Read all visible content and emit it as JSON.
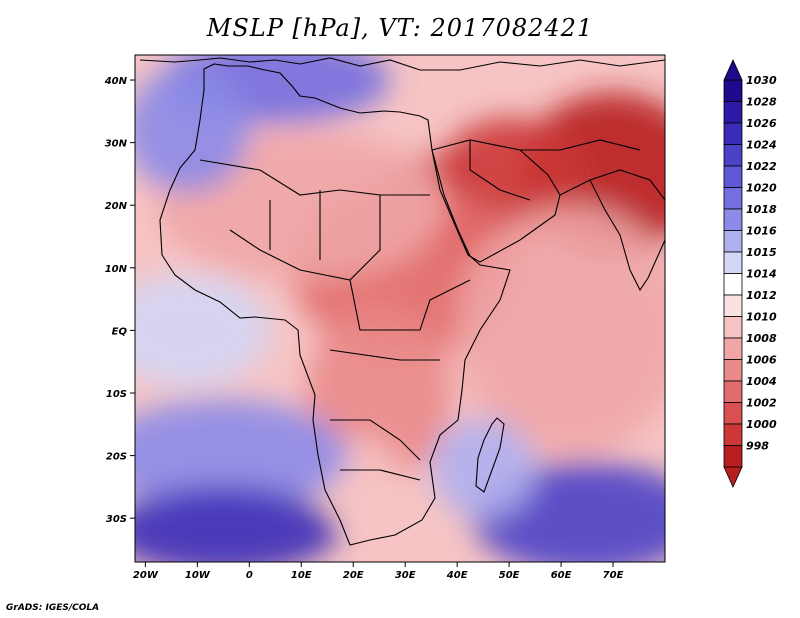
{
  "title": "MSLP [hPa], VT: 2017082421",
  "credit": "GrADS: IGES/COLA",
  "map": {
    "variable": "Mean sea level pressure",
    "units": "hPa",
    "valid_time": "2017082421",
    "lon_range": [
      -22,
      80
    ],
    "lat_range": [
      -37,
      44
    ],
    "lon_ticks": [
      {
        "value": -20,
        "label": "20W"
      },
      {
        "value": -10,
        "label": "10W"
      },
      {
        "value": 0,
        "label": "0"
      },
      {
        "value": 10,
        "label": "10E"
      },
      {
        "value": 20,
        "label": "20E"
      },
      {
        "value": 30,
        "label": "30E"
      },
      {
        "value": 40,
        "label": "40E"
      },
      {
        "value": 50,
        "label": "50E"
      },
      {
        "value": 60,
        "label": "60E"
      },
      {
        "value": 70,
        "label": "70E"
      }
    ],
    "lat_ticks": [
      {
        "value": 40,
        "label": "40N"
      },
      {
        "value": 30,
        "label": "30N"
      },
      {
        "value": 20,
        "label": "20N"
      },
      {
        "value": 10,
        "label": "10N"
      },
      {
        "value": 0,
        "label": "EQ"
      },
      {
        "value": -10,
        "label": "10S"
      },
      {
        "value": -20,
        "label": "20S"
      },
      {
        "value": -30,
        "label": "30S"
      }
    ]
  },
  "colorbar": {
    "levels": [
      {
        "label": "1030",
        "color": "#1e0a8c"
      },
      {
        "label": "1028",
        "color": "#2c1aa6"
      },
      {
        "label": "1026",
        "color": "#3a2cb8"
      },
      {
        "label": "1024",
        "color": "#4c42c8"
      },
      {
        "label": "1022",
        "color": "#5e58d4"
      },
      {
        "label": "1020",
        "color": "#736fe0"
      },
      {
        "label": "1018",
        "color": "#8c8be8"
      },
      {
        "label": "1016",
        "color": "#b0b0f0"
      },
      {
        "label": "1015",
        "color": "#d4d6f6"
      },
      {
        "label": "1014",
        "color": "#ffffff"
      },
      {
        "label": "1012",
        "color": "#fbe2e2"
      },
      {
        "label": "1010",
        "color": "#f6c4c4"
      },
      {
        "label": "1008",
        "color": "#f0a6a6"
      },
      {
        "label": "1006",
        "color": "#ea8a8a"
      },
      {
        "label": "1004",
        "color": "#e26c6c"
      },
      {
        "label": "1002",
        "color": "#d85050"
      },
      {
        "label": "1000",
        "color": "#cc3838"
      },
      {
        "label": "998",
        "color": "#b81e1e"
      }
    ]
  },
  "field_blobs": [
    {
      "lon": 70,
      "lat": 25,
      "rx": 18,
      "ry": 13,
      "color": "#b81e1e"
    },
    {
      "lon": 50,
      "lat": 24,
      "rx": 14,
      "ry": 10,
      "color": "#cc3838"
    },
    {
      "lon": 35,
      "lat": 20,
      "rx": 10,
      "ry": 8,
      "color": "#cc3838"
    },
    {
      "lon": 30,
      "lat": 10,
      "rx": 22,
      "ry": 14,
      "color": "#e26c6c"
    },
    {
      "lon": 62,
      "lat": 0,
      "rx": 22,
      "ry": 20,
      "color": "#f0a6a6"
    },
    {
      "lon": 10,
      "lat": 20,
      "rx": 28,
      "ry": 12,
      "color": "#f0a6a6"
    },
    {
      "lon": 25,
      "lat": -10,
      "rx": 14,
      "ry": 14,
      "color": "#ea8a8a"
    },
    {
      "lon": 20,
      "lat": -23,
      "rx": 9,
      "ry": 6,
      "color": "#f6c4c4"
    },
    {
      "lon": 5,
      "lat": 40,
      "rx": 22,
      "ry": 7,
      "color": "#736fe0"
    },
    {
      "lon": -12,
      "lat": 32,
      "rx": 12,
      "ry": 10,
      "color": "#8c8be8"
    },
    {
      "lon": -12,
      "lat": 0,
      "rx": 16,
      "ry": 9,
      "color": "#d4d6f6"
    },
    {
      "lon": -5,
      "lat": -20,
      "rx": 24,
      "ry": 9,
      "color": "#8c8be8"
    },
    {
      "lon": -5,
      "lat": -32,
      "rx": 22,
      "ry": 7,
      "color": "#3a2cb8"
    },
    {
      "lon": 65,
      "lat": -30,
      "rx": 22,
      "ry": 9,
      "color": "#4c42c8"
    },
    {
      "lon": 45,
      "lat": -22,
      "rx": 10,
      "ry": 8,
      "color": "#b0b0f0"
    }
  ]
}
